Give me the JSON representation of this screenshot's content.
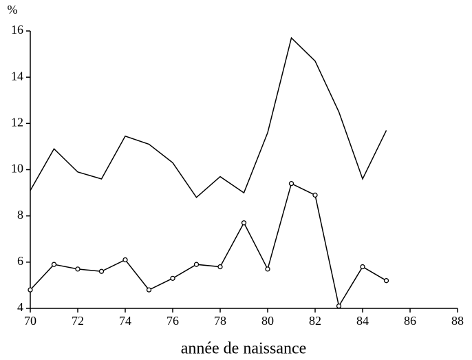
{
  "chart_data": {
    "type": "line",
    "y_label": "%",
    "x_label": "année de naissance",
    "x": [
      70,
      71,
      72,
      73,
      74,
      75,
      76,
      77,
      78,
      79,
      80,
      81,
      82,
      83,
      84,
      85
    ],
    "series": [
      {
        "color": "#000000",
        "marker": "none",
        "values": [
          9.1,
          10.9,
          9.9,
          9.6,
          11.45,
          11.1,
          10.3,
          8.8,
          9.7,
          9.0,
          11.6,
          15.7,
          14.7,
          12.5,
          9.6,
          11.7
        ]
      },
      {
        "color": "#000000",
        "marker": "circle",
        "values": [
          4.8,
          5.9,
          5.7,
          5.6,
          6.1,
          4.8,
          5.3,
          5.9,
          5.8,
          7.7,
          5.7,
          9.4,
          8.9,
          4.1,
          5.8,
          5.2
        ]
      }
    ],
    "xlim": [
      70,
      88
    ],
    "xticks": [
      70,
      72,
      74,
      76,
      78,
      80,
      82,
      84,
      86,
      88
    ],
    "ylim": [
      4,
      16
    ],
    "yticks": [
      4,
      6,
      8,
      10,
      12,
      14,
      16
    ],
    "grid": false
  }
}
